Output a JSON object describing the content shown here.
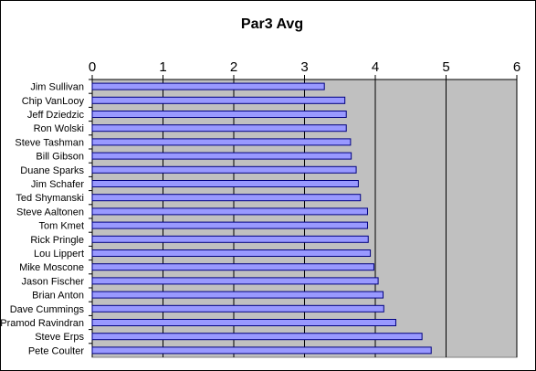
{
  "chart_data": {
    "type": "bar",
    "orientation": "horizontal",
    "title": "Par3 Avg",
    "xlabel": "",
    "ylabel": "",
    "xlim": [
      0,
      6
    ],
    "xticks": [
      "0",
      "1",
      "2",
      "3",
      "4",
      "5",
      "6"
    ],
    "x_axis_position": "top",
    "grid": "vertical",
    "legend": "none",
    "categories": [
      "Jim Sullivan",
      "Chip VanLooy",
      "Jeff Dziedzic",
      "Ron Wolski",
      "Steve Tashman",
      "Bill Gibson",
      "Duane Sparks",
      "Jim Schafer",
      "Ted Shymanski",
      "Steve Aaltonen",
      "Tom Kmet",
      "Rick Pringle",
      "Lou Lippert",
      "Mike Moscone",
      "Jason Fischer",
      "Brian Anton",
      "Dave Cummings",
      "Pramod Ravindran",
      "Steve Erps",
      "Pete Coulter"
    ],
    "values": [
      3.28,
      3.57,
      3.59,
      3.59,
      3.65,
      3.66,
      3.73,
      3.76,
      3.79,
      3.89,
      3.89,
      3.9,
      3.93,
      3.98,
      4.04,
      4.11,
      4.12,
      4.29,
      4.66,
      4.79
    ],
    "colors": {
      "bar_fill": "#9999ff",
      "bar_stroke": "#000080",
      "plot_background": "#c0c0c0",
      "grid": "#000000"
    }
  }
}
